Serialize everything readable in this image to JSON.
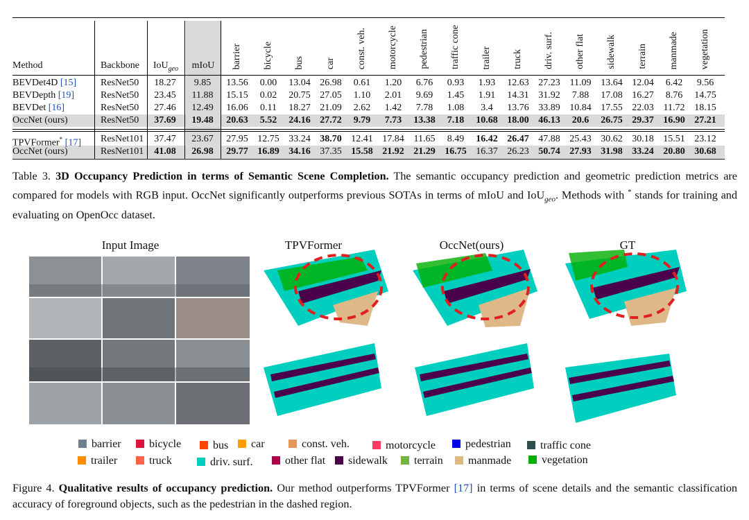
{
  "table": {
    "columns": [
      "Method",
      "Backbone",
      {
        "text": "IoU",
        "sub": "geo"
      },
      "mIoU",
      "barrier",
      "bicycle",
      "bus",
      "car",
      "const. veh.",
      "motorcycle",
      "pedestrian",
      "traffic cone",
      "trailer",
      "truck",
      "driv. surf.",
      "other flat",
      "sidewalk",
      "terrain",
      "manmade",
      "vegetation"
    ],
    "rows": [
      {
        "method": {
          "name": "BEVDet4D",
          "cite": "[15]"
        },
        "backbone": "ResNet50",
        "values": [
          "18.27",
          "9.85",
          "13.56",
          "0.00",
          "13.04",
          "26.98",
          "0.61",
          "1.20",
          "6.76",
          "0.93",
          "1.93",
          "12.63",
          "27.23",
          "11.09",
          "13.64",
          "12.04",
          "6.42",
          "9.56"
        ],
        "bold": []
      },
      {
        "method": {
          "name": "BEVDepth",
          "cite": "[19]"
        },
        "backbone": "ResNet50",
        "values": [
          "23.45",
          "11.88",
          "15.15",
          "0.02",
          "20.75",
          "27.05",
          "1.10",
          "2.01",
          "9.69",
          "1.45",
          "1.91",
          "14.31",
          "31.92",
          "7.88",
          "17.08",
          "16.27",
          "8.76",
          "14.75"
        ],
        "bold": []
      },
      {
        "method": {
          "name": "BEVDet",
          "cite": "[16]"
        },
        "backbone": "ResNet50",
        "values": [
          "27.46",
          "12.49",
          "16.06",
          "0.11",
          "18.27",
          "21.09",
          "2.62",
          "1.42",
          "7.78",
          "1.08",
          "3.4",
          "13.76",
          "33.89",
          "10.84",
          "17.55",
          "22.03",
          "11.72",
          "18.15"
        ],
        "bold": []
      },
      {
        "method": {
          "name": "OccNet (ours)"
        },
        "backbone": "ResNet50",
        "values": [
          "37.69",
          "19.48",
          "20.63",
          "5.52",
          "24.16",
          "27.72",
          "9.79",
          "7.73",
          "13.38",
          "7.18",
          "10.68",
          "18.00",
          "46.13",
          "20.6",
          "26.75",
          "29.37",
          "16.90",
          "27.21"
        ],
        "bold": [
          0,
          1,
          2,
          3,
          4,
          5,
          6,
          7,
          8,
          9,
          10,
          11,
          12,
          13,
          14,
          15,
          16,
          17
        ]
      },
      {
        "method": {
          "name": "TPVFormer",
          "sup": "*",
          "cite": "[17]"
        },
        "backbone": "ResNet101",
        "values": [
          "37.47",
          "23.67",
          "27.95",
          "12.75",
          "33.24",
          "38.70",
          "12.41",
          "17.84",
          "11.65",
          "8.49",
          "16.42",
          "26.47",
          "47.88",
          "25.43",
          "30.62",
          "30.18",
          "15.51",
          "23.12"
        ],
        "bold": [
          5,
          10,
          11
        ]
      },
      {
        "method": {
          "name": "OccNet (ours)"
        },
        "backbone": "ResNet101",
        "values": [
          "41.08",
          "26.98",
          "29.77",
          "16.89",
          "34.16",
          "37.35",
          "15.58",
          "21.92",
          "21.29",
          "16.75",
          "16.37",
          "26.23",
          "50.74",
          "27.93",
          "31.98",
          "33.24",
          "20.80",
          "30.68"
        ],
        "bold": [
          0,
          1,
          2,
          3,
          4,
          6,
          7,
          8,
          9,
          12,
          13,
          14,
          15,
          16,
          17
        ]
      }
    ],
    "highlight_rows": [
      3,
      5
    ],
    "highlight_column": 3,
    "group_break_before": 4
  },
  "table_caption": {
    "label": "Table 3.",
    "title": "3D Occupancy Prediction in terms of Semantic Scene Completion.",
    "text1": "The semantic occupancy prediction and geometric prediction metrics are compared for models with RGB input. OccNet significantly outperforms previous SOTAs in terms of mIoU and IoU",
    "sub": "geo",
    "text2": ". Methods with",
    "sup": "*",
    "text3": "stands for training and evaluating on OpenOcc dataset."
  },
  "figure": {
    "panels": [
      "Input Image",
      "TPVFormer",
      "OccNet(ours)",
      "GT"
    ],
    "legend": [
      {
        "label": "barrier",
        "color": "#708090"
      },
      {
        "label": "bicycle",
        "color": "#dc143c"
      },
      {
        "label": "bus",
        "color": "#ff4500"
      },
      {
        "label": "car",
        "color": "#ff9e00"
      },
      {
        "label": "const. veh.",
        "color": "#e9965a"
      },
      {
        "label": "motorcycle",
        "color": "#ff3d63"
      },
      {
        "label": "pedestrian",
        "color": "#0000e6"
      },
      {
        "label": "traffic cone",
        "color": "#2f4f4f"
      },
      {
        "label": "trailer",
        "color": "#ff8c00"
      },
      {
        "label": "truck",
        "color": "#ff6347"
      },
      {
        "label": "driv. surf.",
        "color": "#00cfbf"
      },
      {
        "label": "other flat",
        "color": "#af004b"
      },
      {
        "label": "sidewalk",
        "color": "#4b004b"
      },
      {
        "label": "terrain",
        "color": "#70b43c"
      },
      {
        "label": "manmade",
        "color": "#deb887"
      },
      {
        "label": "vegetation",
        "color": "#00af00"
      }
    ]
  },
  "figure_caption": {
    "label": "Figure 4.",
    "title": "Qualitative results of occupancy prediction.",
    "text1": "Our method outperforms TPVFormer",
    "cite": "[17]",
    "text2": "in terms of scene details and the semantic classification accuracy of foreground objects, such as the pedestrian in the dashed region."
  }
}
